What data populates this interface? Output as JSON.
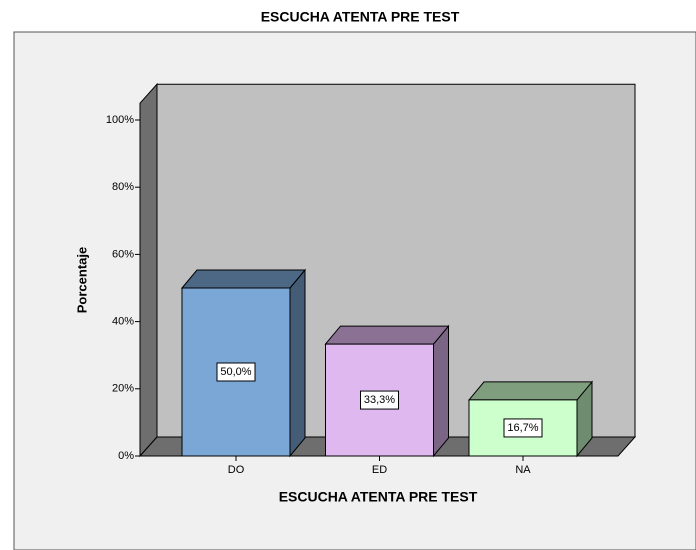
{
  "chart_data": {
    "type": "bar3d",
    "title": "ESCUCHA ATENTA PRE TEST",
    "x_label": "ESCUCHA ATENTA PRE TEST",
    "y_label": "Porcentaje",
    "categories": [
      "DO",
      "ED",
      "NA"
    ],
    "values": [
      50.0,
      33.3,
      16.7
    ],
    "value_labels": [
      "50,0%",
      "33,3%",
      "16,7%"
    ],
    "colors": [
      "#7ba7d6",
      "#e0b8f0",
      "#ccffcc"
    ],
    "ylim": [
      0,
      105
    ],
    "yticks": [
      {
        "value": 0,
        "label": "0%"
      },
      {
        "value": 20,
        "label": "20%"
      },
      {
        "value": 40,
        "label": "40%"
      },
      {
        "value": 60,
        "label": "60%"
      },
      {
        "value": 80,
        "label": "80%"
      },
      {
        "value": 100,
        "label": "100%"
      }
    ]
  }
}
